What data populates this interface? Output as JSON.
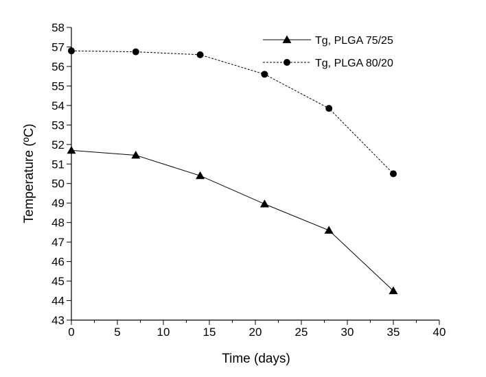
{
  "chart_data": {
    "type": "line",
    "title": "",
    "xlabel": "Time (days)",
    "ylabel": "Temperature (ºC)",
    "xlim": [
      0,
      40
    ],
    "ylim": [
      43,
      58
    ],
    "x_ticks": [
      0,
      5,
      10,
      15,
      20,
      25,
      30,
      35,
      40
    ],
    "y_ticks": [
      43,
      44,
      45,
      46,
      47,
      48,
      49,
      50,
      51,
      52,
      53,
      54,
      55,
      56,
      57,
      58
    ],
    "grid": false,
    "legend_position": "top-right",
    "series": [
      {
        "name": "Tg, PLGA 75/25",
        "marker": "triangle",
        "line_style": "solid",
        "x": [
          0,
          7,
          14,
          21,
          28,
          35
        ],
        "values": [
          51.7,
          51.45,
          50.4,
          48.95,
          47.6,
          44.5
        ]
      },
      {
        "name": "Tg, PLGA 80/20",
        "marker": "circle",
        "line_style": "dashed",
        "x": [
          0,
          7,
          14,
          21,
          28,
          35
        ],
        "values": [
          56.8,
          56.75,
          56.6,
          55.6,
          53.85,
          50.5
        ]
      }
    ],
    "colors": {
      "line": "#000000"
    }
  }
}
